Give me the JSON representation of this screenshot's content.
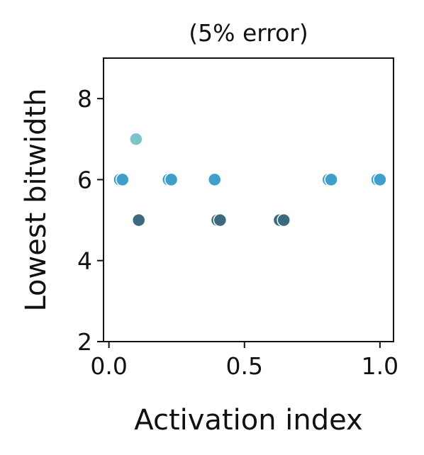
{
  "chart_data": {
    "type": "scatter",
    "title": "(5% error)",
    "xlabel": "Activation index",
    "ylabel": "Lowest bitwidth",
    "xlim": [
      -0.02,
      1.05
    ],
    "ylim": [
      2,
      9
    ],
    "xticks": [
      "0.0",
      "0.5",
      "1.0"
    ],
    "yticks": [
      "2",
      "4",
      "6",
      "8"
    ],
    "grid": false,
    "points": [
      {
        "x": 0.04,
        "y": 6,
        "color": "#3e9fcc"
      },
      {
        "x": 0.05,
        "y": 6,
        "color": "#3e9fcc"
      },
      {
        "x": 0.1,
        "y": 7,
        "color": "#7cc4cc"
      },
      {
        "x": 0.11,
        "y": 5,
        "color": "#3a6a80"
      },
      {
        "x": 0.22,
        "y": 6,
        "color": "#3e9fcc"
      },
      {
        "x": 0.23,
        "y": 6,
        "color": "#3e9fcc"
      },
      {
        "x": 0.39,
        "y": 6,
        "color": "#3e9fcc"
      },
      {
        "x": 0.4,
        "y": 5,
        "color": "#3a6a80"
      },
      {
        "x": 0.41,
        "y": 5,
        "color": "#3a6a80"
      },
      {
        "x": 0.63,
        "y": 5,
        "color": "#3a6a80"
      },
      {
        "x": 0.645,
        "y": 5,
        "color": "#3a6a80"
      },
      {
        "x": 0.81,
        "y": 6,
        "color": "#3e9fcc"
      },
      {
        "x": 0.82,
        "y": 6,
        "color": "#3e9fcc"
      },
      {
        "x": 0.99,
        "y": 6,
        "color": "#3e9fcc"
      },
      {
        "x": 1.0,
        "y": 6,
        "color": "#3e9fcc"
      }
    ]
  }
}
